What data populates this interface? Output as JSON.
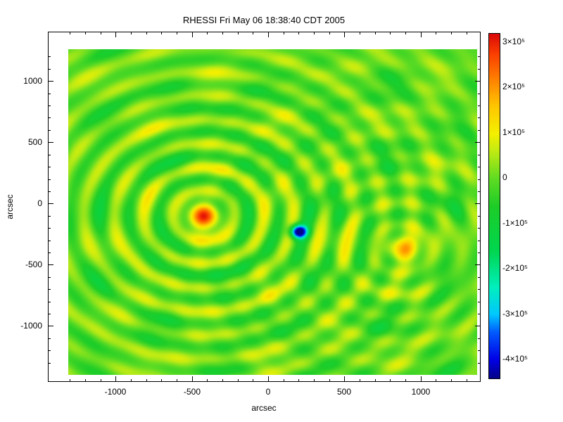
{
  "title": "RHESSI Fri May 06 18:38:40 CDT 2005",
  "chart_data": {
    "type": "heatmap",
    "title": "RHESSI Fri May 06 18:38:40 CDT 2005",
    "subtitle": "",
    "xlabel": "arcsec",
    "ylabel": "arcsec",
    "x_range": [
      -1310,
      1370
    ],
    "y_range": [
      -1400,
      1260
    ],
    "value_range": [
      -440000,
      320000
    ],
    "grid": "off",
    "legend_position": "colorbar-right",
    "x_ticks": {
      "values": [
        -1000,
        -500,
        0,
        500,
        1000
      ],
      "labels": [
        "-1000",
        "-500",
        "0",
        "500",
        "1000"
      ]
    },
    "y_ticks": {
      "values": [
        1000,
        500,
        0,
        -500,
        -1000
      ],
      "labels": [
        "1000",
        "500",
        "0",
        "-500",
        "-1000"
      ]
    },
    "minor_tick_step": 100,
    "colorbar": {
      "top_value": 320000,
      "bottom_value": -440000,
      "labels": [
        {
          "value": 300000,
          "label": "3×10⁵"
        },
        {
          "value": 200000,
          "label": "2×10⁵"
        },
        {
          "value": 100000,
          "label": "1×10⁵"
        },
        {
          "value": 0,
          "label": "0"
        },
        {
          "value": -100000,
          "label": "-1×10⁵"
        },
        {
          "value": -200000,
          "label": "-2×10⁵"
        },
        {
          "value": -300000,
          "label": "-3×10⁵"
        },
        {
          "value": -400000,
          "label": "-4×10⁵"
        }
      ]
    },
    "colormap_stops": [
      [
        -440000,
        5,
        5,
        140
      ],
      [
        -400000,
        0,
        0,
        230
      ],
      [
        -340000,
        0,
        90,
        255
      ],
      [
        -300000,
        0,
        200,
        255
      ],
      [
        -240000,
        0,
        240,
        190
      ],
      [
        -160000,
        0,
        215,
        80
      ],
      [
        -60000,
        30,
        205,
        40
      ],
      [
        0,
        95,
        220,
        35
      ],
      [
        60000,
        190,
        235,
        20
      ],
      [
        100000,
        245,
        240,
        0
      ],
      [
        160000,
        255,
        200,
        0
      ],
      [
        220000,
        255,
        130,
        0
      ],
      [
        280000,
        250,
        60,
        0
      ],
      [
        320000,
        220,
        10,
        10
      ]
    ],
    "sources": [
      {
        "type": "ringed",
        "x": -420,
        "y": -100,
        "peak": 315000,
        "core_sigma": 65,
        "ring_amp": 95000,
        "ring_radius": 200,
        "ring_spacing": 195,
        "ring_decay": 1600
      },
      {
        "type": "ringed",
        "x": 870,
        "y": -370,
        "peak": 210000,
        "core_sigma": 70,
        "ring_amp": 60000,
        "ring_radius": 190,
        "ring_spacing": 190,
        "ring_decay": 900
      },
      {
        "type": "gaussian",
        "x": 200,
        "y": -230,
        "peak": -520000,
        "sigma": 38
      }
    ],
    "texture": [
      {
        "amp": 35000,
        "kx": 120,
        "ky": 105,
        "phase": 1.3
      },
      {
        "amp": 25000,
        "kx": 160,
        "ky": 140,
        "phase": 0.7
      }
    ]
  }
}
